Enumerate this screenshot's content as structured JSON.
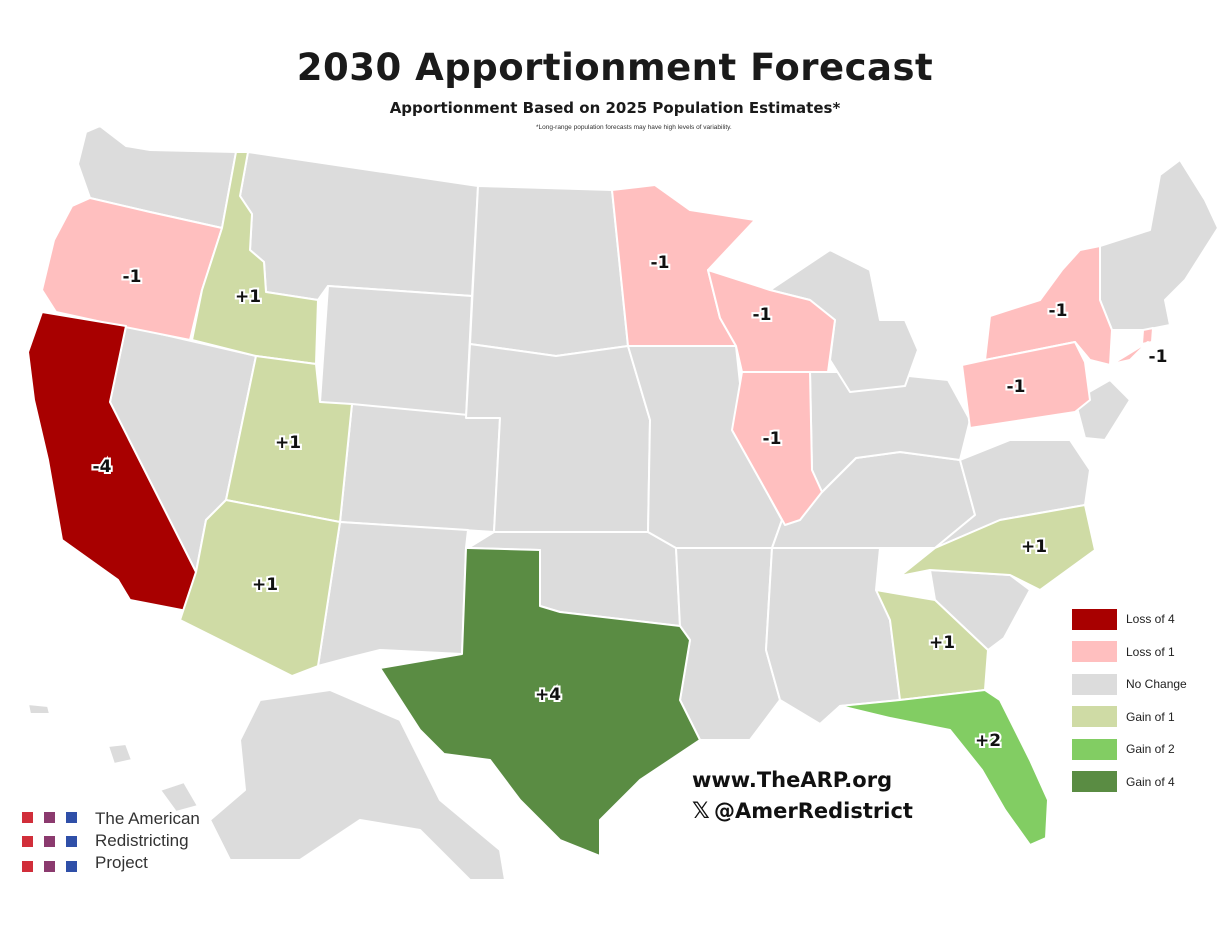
{
  "title": "2030 Apportionment Forecast",
  "subtitle": "Apportionment Based on 2025 Population Estimates*",
  "footnote": "*Long-range population forecasts may have high levels of variability.",
  "colors": {
    "loss_4": "#a80000",
    "loss_1": "#ffbfbf",
    "no_change": "#dcdcdc",
    "gain_1": "#cfdba5",
    "gain_2": "#82cd63",
    "gain_4": "#5a8c43",
    "border": "#ffffff"
  },
  "legend": [
    {
      "label": "Loss of 4",
      "color": "#a80000"
    },
    {
      "label": "Loss of 1",
      "color": "#ffbfbf"
    },
    {
      "label": "No Change",
      "color": "#dcdcdc"
    },
    {
      "label": "Gain of 1",
      "color": "#cfdba5"
    },
    {
      "label": "Gain of 2",
      "color": "#82cd63"
    },
    {
      "label": "Gain of 4",
      "color": "#5a8c43"
    }
  ],
  "state_changes": [
    {
      "state": "California",
      "change": "-4",
      "category": "loss_4"
    },
    {
      "state": "Oregon",
      "change": "-1",
      "category": "loss_1"
    },
    {
      "state": "Minnesota",
      "change": "-1",
      "category": "loss_1"
    },
    {
      "state": "Wisconsin",
      "change": "-1",
      "category": "loss_1"
    },
    {
      "state": "Illinois",
      "change": "-1",
      "category": "loss_1"
    },
    {
      "state": "New York",
      "change": "-1",
      "category": "loss_1"
    },
    {
      "state": "Pennsylvania",
      "change": "-1",
      "category": "loss_1"
    },
    {
      "state": "Rhode Island",
      "change": "-1",
      "category": "loss_1"
    },
    {
      "state": "Idaho",
      "change": "+1",
      "category": "gain_1"
    },
    {
      "state": "Utah",
      "change": "+1",
      "category": "gain_1"
    },
    {
      "state": "Arizona",
      "change": "+1",
      "category": "gain_1"
    },
    {
      "state": "North Carolina",
      "change": "+1",
      "category": "gain_1"
    },
    {
      "state": "Georgia",
      "change": "+1",
      "category": "gain_1"
    },
    {
      "state": "Florida",
      "change": "+2",
      "category": "gain_2"
    },
    {
      "state": "Texas",
      "change": "+4",
      "category": "gain_4"
    }
  ],
  "website": "www.TheARP.org",
  "social_handle": "@AmerRedistrict",
  "logo": {
    "line1": "The American",
    "line2": "Redistricting",
    "line3": "Project",
    "colors": [
      "#d12e3a",
      "#8b3a6e",
      "#2f4fa8"
    ]
  }
}
